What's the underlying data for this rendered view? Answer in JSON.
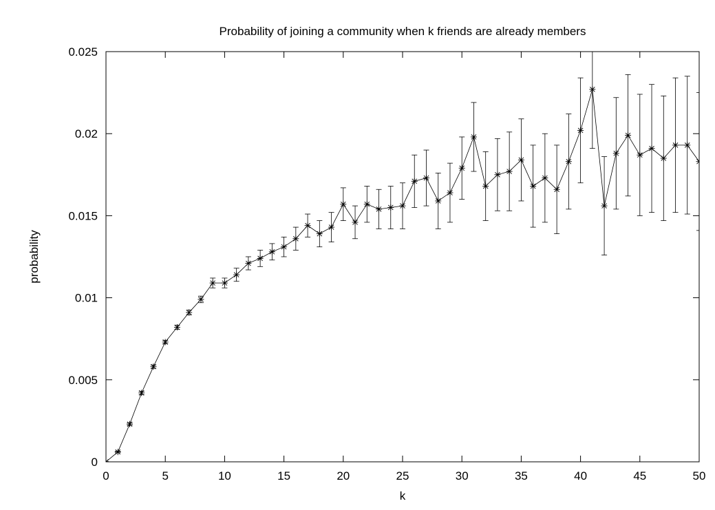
{
  "chart_data": {
    "type": "line",
    "title": "Probability of joining a community when k friends are already members",
    "xlabel": "k",
    "ylabel": "probability",
    "xlim": [
      0,
      50
    ],
    "ylim": [
      0,
      0.025
    ],
    "x_ticks": [
      "0",
      "5",
      "10",
      "15",
      "20",
      "25",
      "30",
      "35",
      "40",
      "45",
      "50"
    ],
    "y_ticks": [
      "0",
      "0.005",
      "0.01",
      "0.015",
      "0.02",
      "0.025"
    ],
    "grid": false,
    "legend": "none",
    "marker": "asterisk",
    "error_bars": true,
    "series": [
      {
        "x": [
          0,
          1,
          2,
          3,
          4,
          5,
          6,
          7,
          8,
          9,
          10,
          11,
          12,
          13,
          14,
          15,
          16,
          17,
          18,
          19,
          20,
          21,
          22,
          23,
          24,
          25,
          26,
          27,
          28,
          29,
          30,
          31,
          32,
          33,
          34,
          35,
          36,
          37,
          38,
          39,
          40,
          41,
          42,
          43,
          44,
          45,
          46,
          47,
          48,
          49,
          50
        ],
        "values": [
          0.0,
          0.0006,
          0.0023,
          0.0042,
          0.0058,
          0.0073,
          0.0082,
          0.0091,
          0.0099,
          0.0109,
          0.0109,
          0.0114,
          0.0121,
          0.0124,
          0.0128,
          0.0131,
          0.0136,
          0.0144,
          0.0139,
          0.0143,
          0.0157,
          0.0146,
          0.0157,
          0.0154,
          0.0155,
          0.0156,
          0.0171,
          0.0173,
          0.0159,
          0.0164,
          0.0179,
          0.0198,
          0.0168,
          0.0175,
          0.0177,
          0.0184,
          0.0168,
          0.0173,
          0.0166,
          0.0183,
          0.0202,
          0.0227,
          0.0156,
          0.0188,
          0.0199,
          0.0187,
          0.0191,
          0.0185,
          0.0193,
          0.0193,
          0.0183
        ],
        "error": [
          2e-05,
          5e-05,
          8e-05,
          0.0001,
          0.0001,
          0.0001,
          0.00012,
          0.00015,
          0.0002,
          0.0003,
          0.0003,
          0.0004,
          0.0004,
          0.0005,
          0.0005,
          0.0006,
          0.0007,
          0.0007,
          0.0008,
          0.0009,
          0.001,
          0.001,
          0.0011,
          0.0012,
          0.0013,
          0.0014,
          0.0016,
          0.0017,
          0.0017,
          0.0018,
          0.0019,
          0.0021,
          0.0021,
          0.0022,
          0.0024,
          0.0025,
          0.0025,
          0.0027,
          0.0027,
          0.0029,
          0.0032,
          0.0036,
          0.003,
          0.0034,
          0.0037,
          0.0037,
          0.0039,
          0.0038,
          0.0041,
          0.0042,
          0.0042
        ]
      }
    ]
  }
}
